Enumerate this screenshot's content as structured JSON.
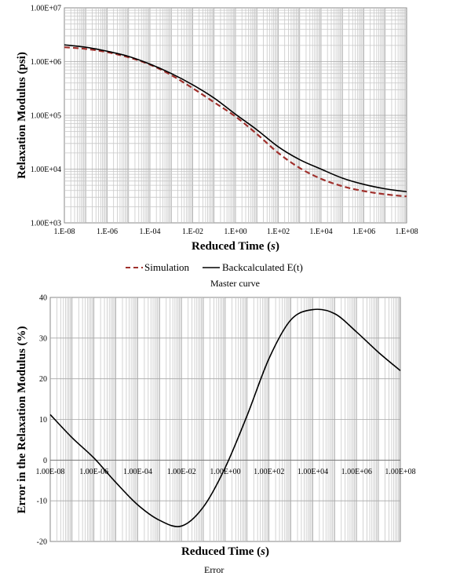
{
  "chart_data": [
    {
      "type": "line",
      "title": "",
      "xlabel": "Reduced Time (s)",
      "xlabel_main": "Reduced Time (",
      "xlabel_var": "s",
      "xlabel_close": ")",
      "ylabel": "Relaxation Modulus (psi)",
      "x_scale": "log",
      "y_scale": "log",
      "xlim": [
        1e-08,
        100000000.0
      ],
      "ylim": [
        1000,
        10000000
      ],
      "grid": true,
      "legend": "bottom",
      "caption": "Master curve",
      "x_ticks": [
        "1.E-08",
        "1.E-06",
        "1.E-04",
        "1.E-02",
        "1.E+00",
        "1.E+02",
        "1.E+04",
        "1.E+06",
        "1.E+08"
      ],
      "y_ticks": [
        "1.00E+03",
        "1.00E+04",
        "1.00E+05",
        "1.00E+06",
        "1.00E+07"
      ],
      "series": [
        {
          "name": "Simulation",
          "color": "#a0302c",
          "style": "dashed",
          "x": [
            1e-08,
            1e-07,
            1e-06,
            1e-05,
            0.0001,
            0.001,
            0.01,
            0.1,
            1.0,
            10.0,
            100.0,
            1000.0,
            10000.0,
            100000.0,
            1000000.0,
            10000000.0,
            100000000.0
          ],
          "y": [
            1850000,
            1720000,
            1500000,
            1200000,
            880000,
            560000,
            320000,
            175000,
            95000,
            45000,
            20000,
            10500,
            6600,
            4800,
            3900,
            3400,
            3100
          ]
        },
        {
          "name": "Backcalculated E(t)",
          "color": "#000000",
          "style": "solid",
          "x": [
            1e-08,
            1e-07,
            1e-06,
            1e-05,
            0.0001,
            0.001,
            0.01,
            0.1,
            1.0,
            10.0,
            100.0,
            1000.0,
            10000.0,
            100000.0,
            1000000.0,
            10000000.0,
            100000000.0
          ],
          "y": [
            2050000,
            1850000,
            1560000,
            1250000,
            900000,
            600000,
            370000,
            210000,
            105000,
            54000,
            26000,
            15000,
            10000,
            6800,
            5200,
            4300,
            3800
          ]
        }
      ]
    },
    {
      "type": "line",
      "title": "",
      "xlabel": "Reduced Time (s)",
      "xlabel_main": "Reduced Time (",
      "xlabel_var": "s",
      "xlabel_close": ")",
      "ylabel": "Error in the Relaxation Modulus (%)",
      "x_scale": "log",
      "xlim": [
        1e-08,
        100000000.0
      ],
      "ylim": [
        -20,
        40
      ],
      "grid": true,
      "caption": "Error",
      "x_ticks": [
        "1.00E-08",
        "1.00E-06",
        "1.00E-04",
        "1.00E-02",
        "1.00E+00",
        "1.00E+02",
        "1.00E+04",
        "1.00E+06",
        "1.00E+08"
      ],
      "y_ticks": [
        "-20",
        "-10",
        "0",
        "10",
        "20",
        "30",
        "40"
      ],
      "series": [
        {
          "color": "#000000",
          "x": [
            1e-08,
            1e-07,
            1e-06,
            1e-05,
            0.0001,
            0.001,
            0.01,
            0.1,
            1.0,
            10.0,
            100.0,
            1000.0,
            10000.0,
            100000.0,
            1000000.0,
            10000000.0,
            100000000.0
          ],
          "y": [
            11.2,
            5.5,
            0.5,
            -5.5,
            -11,
            -14.8,
            -16.2,
            -11.5,
            -1.8,
            11,
            25,
            34.5,
            37,
            36,
            31.5,
            26.5,
            22
          ]
        }
      ]
    }
  ]
}
